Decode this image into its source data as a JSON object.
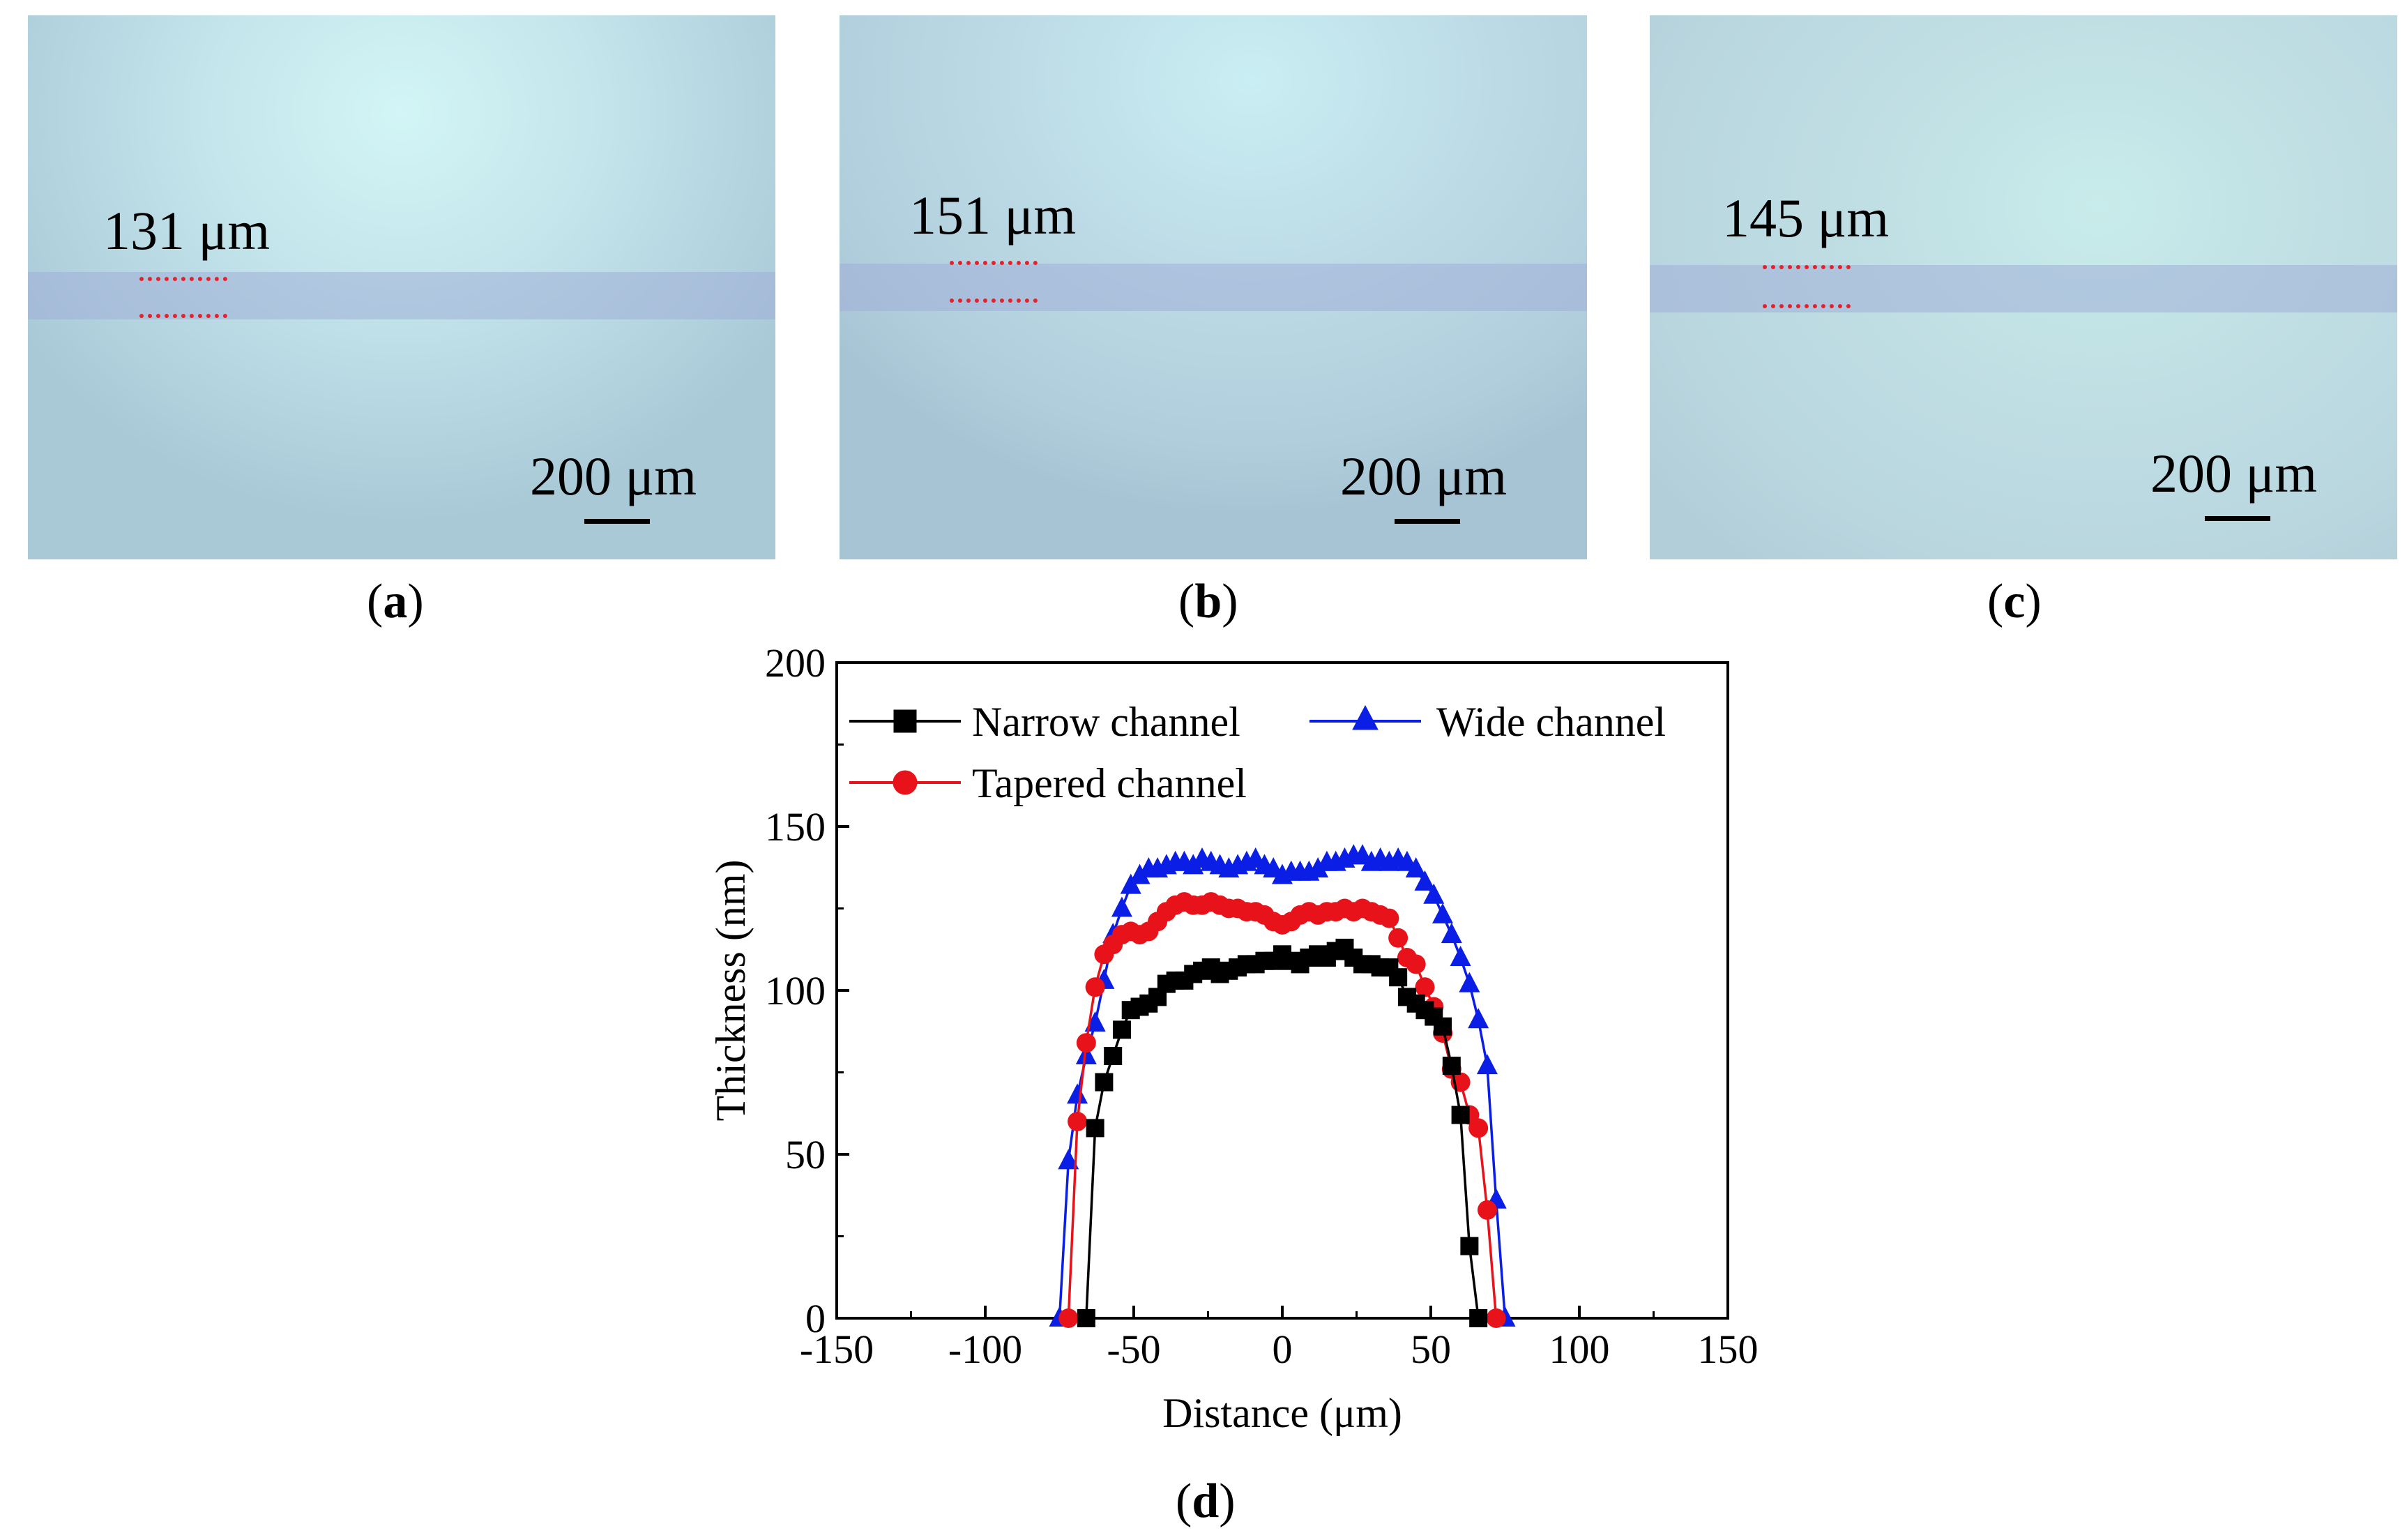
{
  "panels": {
    "a": {
      "caption": "a",
      "width_label": "131 μm",
      "scale_label": "200 μm"
    },
    "b": {
      "caption": "b",
      "width_label": "151 μm",
      "scale_label": "200 μm"
    },
    "c": {
      "caption": "c",
      "width_label": "145 μm",
      "scale_label": "200 μm"
    },
    "d": {
      "caption": "d"
    }
  },
  "colors": {
    "narrow": "#000000",
    "wide": "#0a1ee6",
    "tapered": "#e8131a",
    "dots": "#e2222a"
  },
  "chart_data": {
    "type": "line",
    "xlabel": "Distance (μm)",
    "ylabel": "Thickness (nm)",
    "xlim": [
      -150,
      150
    ],
    "ylim": [
      0,
      200
    ],
    "xticks": [
      -150,
      -100,
      -50,
      0,
      50,
      100,
      150
    ],
    "yticks": [
      0,
      50,
      100,
      150,
      200
    ],
    "legend_position": "top-left",
    "series": [
      {
        "name": "Narrow channel",
        "marker": "square",
        "color": "#000000",
        "x": [
          -66,
          -63,
          -60,
          -57,
          -54,
          -51,
          -48,
          -45,
          -42,
          -39,
          -36,
          -33,
          -30,
          -27,
          -24,
          -21,
          -18,
          -15,
          -12,
          -9,
          -6,
          -3,
          0,
          3,
          6,
          9,
          12,
          15,
          18,
          21,
          24,
          27,
          30,
          33,
          36,
          39,
          42,
          45,
          48,
          51,
          54,
          57,
          60,
          63,
          66
        ],
        "y": [
          0,
          58,
          72,
          80,
          88,
          94,
          95,
          96,
          98,
          102,
          103,
          103,
          105,
          106,
          107,
          105,
          106,
          107,
          108,
          108,
          109,
          109,
          111,
          109,
          108,
          110,
          111,
          110,
          112,
          113,
          110,
          108,
          108,
          107,
          107,
          104,
          98,
          96,
          94,
          92,
          89,
          77,
          62,
          22,
          0
        ]
      },
      {
        "name": "Wide channel",
        "marker": "triangle",
        "color": "#0a1ee6",
        "x": [
          -75,
          -72,
          -69,
          -66,
          -63,
          -60,
          -57,
          -54,
          -51,
          -48,
          -45,
          -42,
          -39,
          -36,
          -33,
          -30,
          -27,
          -24,
          -21,
          -18,
          -15,
          -12,
          -9,
          -6,
          -3,
          0,
          3,
          6,
          9,
          12,
          15,
          18,
          21,
          24,
          27,
          30,
          33,
          36,
          39,
          42,
          45,
          48,
          51,
          54,
          57,
          60,
          63,
          66,
          69,
          72,
          75
        ],
        "y": [
          0,
          48,
          68,
          80,
          90,
          103,
          117,
          125,
          132,
          135,
          137,
          137,
          138,
          139,
          139,
          138,
          140,
          139,
          138,
          137,
          138,
          139,
          140,
          138,
          137,
          135,
          136,
          136,
          136,
          137,
          139,
          139,
          140,
          141,
          141,
          139,
          140,
          139,
          140,
          139,
          137,
          133,
          129,
          123,
          117,
          110,
          102,
          91,
          77,
          36,
          0
        ]
      },
      {
        "name": "Tapered channel",
        "marker": "circle",
        "color": "#e8131a",
        "x": [
          -72,
          -69,
          -66,
          -63,
          -60,
          -57,
          -54,
          -51,
          -48,
          -45,
          -42,
          -39,
          -36,
          -33,
          -30,
          -27,
          -24,
          -21,
          -18,
          -15,
          -12,
          -9,
          -6,
          -3,
          0,
          3,
          6,
          9,
          12,
          15,
          18,
          21,
          24,
          27,
          30,
          33,
          36,
          39,
          42,
          45,
          48,
          51,
          54,
          57,
          60,
          63,
          66,
          69,
          72
        ],
        "y": [
          0,
          60,
          84,
          101,
          111,
          114,
          117,
          118,
          117,
          118,
          121,
          124,
          126,
          127,
          126,
          126,
          127,
          126,
          125,
          125,
          124,
          124,
          123,
          121,
          120,
          121,
          123,
          124,
          123,
          124,
          124,
          125,
          124,
          125,
          124,
          123,
          122,
          116,
          110,
          108,
          101,
          95,
          87,
          76,
          72,
          62,
          58,
          33,
          0
        ]
      }
    ]
  }
}
